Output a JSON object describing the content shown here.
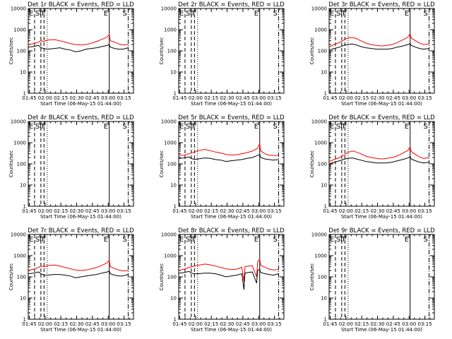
{
  "chart_data": {
    "type": "line",
    "x_tick_labels": [
      "01:45",
      "02:00",
      "02:15",
      "02:30",
      "02:45",
      "03:00",
      "03:15"
    ],
    "x_ticks_minutes_after_0144": [
      1,
      16,
      31,
      46,
      61,
      76,
      91
    ],
    "xlim_minutes_after_0144": [
      0,
      100
    ],
    "xlabel": "Start Time (06-May-15 01:44:00)",
    "ylabel": "Counts/sec",
    "yscale": "log",
    "y_tick_labels": [
      "1",
      "10",
      "100",
      "1000",
      "10000"
    ],
    "ylim": [
      1,
      10000
    ],
    "line_colors": {
      "events": "#000000",
      "lld": "#ff0000"
    },
    "markers": [
      {
        "label": "E",
        "x": 6,
        "style": "dashed"
      },
      {
        "label": "S",
        "x": 12,
        "style": "dashed"
      },
      {
        "label": "T",
        "x": 15,
        "style": "dashed"
      },
      {
        "label": "F",
        "x": 18,
        "style": "dotted"
      },
      {
        "label": "E",
        "x": 77,
        "style": "solid"
      },
      {
        "label": "S",
        "x": 95,
        "style": "dashdot"
      }
    ],
    "panels": [
      {
        "title": "Det 1r BLACK = Events, RED = LLD",
        "marker_labels": [
          "E",
          "S",
          "T",
          "F",
          "E",
          "S"
        ],
        "series": [
          {
            "color": "lld",
            "x": [
              0,
              5,
              10,
              12,
              15,
              18,
              25,
              30,
              35,
              40,
              45,
              50,
              55,
              60,
              65,
              70,
              75,
              77,
              78,
              82,
              86,
              90,
              95
            ],
            "y": [
              200,
              220,
              260,
              300,
              280,
              320,
              340,
              300,
              260,
              220,
              200,
              190,
              200,
              230,
              280,
              350,
              450,
              600,
              300,
              260,
              210,
              190,
              200
            ]
          },
          {
            "color": "events",
            "x": [
              0,
              5,
              10,
              12,
              15,
              18,
              25,
              30,
              35,
              40,
              45,
              50,
              55,
              60,
              65,
              70,
              75,
              77,
              78,
              82,
              86,
              90,
              95
            ],
            "y": [
              150,
              160,
              180,
              140,
              130,
              120,
              130,
              140,
              120,
              110,
              90,
              100,
              120,
              130,
              140,
              160,
              180,
              200,
              150,
              130,
              120,
              120,
              140
            ]
          }
        ]
      },
      {
        "title": "Det 2r BLACK = Events, RED = LLD",
        "marker_labels": [
          "E",
          "S",
          "T",
          "F",
          "E",
          "S"
        ],
        "series": []
      },
      {
        "title": "Det 3r BLACK = Events, RED = LLD",
        "marker_labels": [
          "E",
          "S",
          "T",
          "F",
          "E",
          "S"
        ],
        "series": [
          {
            "color": "lld",
            "x": [
              0,
              5,
              10,
              15,
              18,
              22,
              26,
              30,
              35,
              40,
              45,
              50,
              55,
              60,
              65,
              70,
              75,
              77,
              78,
              82,
              86,
              90,
              95
            ],
            "y": [
              150,
              200,
              250,
              350,
              400,
              430,
              380,
              300,
              230,
              200,
              180,
              170,
              180,
              200,
              250,
              330,
              450,
              650,
              400,
              300,
              230,
              200,
              210
            ]
          },
          {
            "color": "events",
            "x": [
              0,
              5,
              10,
              15,
              18,
              22,
              26,
              30,
              35,
              40,
              45,
              50,
              55,
              60,
              65,
              70,
              75,
              77,
              78,
              82,
              86,
              90,
              95
            ],
            "y": [
              110,
              130,
              150,
              190,
              200,
              210,
              190,
              160,
              140,
              130,
              120,
              120,
              120,
              130,
              150,
              170,
              200,
              220,
              180,
              150,
              130,
              120,
              130
            ]
          }
        ]
      },
      {
        "title": "Det 4r BLACK = Events, RED = LLD",
        "marker_labels": [
          "E",
          "S",
          "T",
          "F",
          "E",
          "S"
        ],
        "series": []
      },
      {
        "title": "Det 5r BLACK = Events, RED = LLD",
        "marker_labels": [
          "E",
          "S",
          "T",
          "F",
          "E",
          "S"
        ],
        "series": [
          {
            "color": "lld",
            "x": [
              0,
              5,
              10,
              12,
              15,
              18,
              25,
              30,
              35,
              40,
              45,
              50,
              55,
              60,
              65,
              70,
              75,
              77,
              78,
              82,
              86,
              90,
              95
            ],
            "y": [
              250,
              260,
              300,
              320,
              350,
              420,
              480,
              420,
              360,
              320,
              280,
              260,
              270,
              300,
              340,
              400,
              550,
              900,
              400,
              300,
              260,
              250,
              250
            ]
          },
          {
            "color": "events",
            "x": [
              0,
              5,
              10,
              12,
              15,
              18,
              25,
              30,
              35,
              40,
              45,
              50,
              55,
              60,
              65,
              70,
              75,
              77,
              78,
              82,
              86,
              90,
              95
            ],
            "y": [
              180,
              190,
              210,
              180,
              160,
              170,
              190,
              180,
              160,
              150,
              130,
              140,
              150,
              160,
              180,
              200,
              250,
              280,
              200,
              170,
              160,
              150,
              160
            ]
          }
        ]
      },
      {
        "title": "Det 6r BLACK = Events, RED = LLD",
        "marker_labels": [
          "E",
          "S",
          "T",
          "F",
          "E",
          "S"
        ],
        "series": [
          {
            "color": "lld",
            "x": [
              0,
              5,
              10,
              15,
              18,
              22,
              26,
              30,
              35,
              40,
              45,
              50,
              55,
              60,
              65,
              70,
              75,
              77,
              78,
              82,
              86,
              90,
              95
            ],
            "y": [
              130,
              160,
              200,
              280,
              350,
              400,
              360,
              300,
              230,
              200,
              180,
              170,
              180,
              200,
              240,
              320,
              430,
              650,
              380,
              280,
              210,
              180,
              200
            ]
          },
          {
            "color": "events",
            "x": [
              0,
              5,
              10,
              15,
              18,
              22,
              26,
              30,
              35,
              40,
              45,
              50,
              55,
              60,
              65,
              70,
              75,
              77,
              78,
              82,
              86,
              90,
              95
            ],
            "y": [
              100,
              120,
              140,
              170,
              180,
              190,
              170,
              150,
              130,
              120,
              110,
              110,
              110,
              120,
              140,
              160,
              190,
              220,
              170,
              140,
              120,
              110,
              120
            ]
          }
        ]
      },
      {
        "title": "Det 7r BLACK = Events, RED = LLD",
        "marker_labels": [
          "E",
          "S",
          "T",
          "F",
          "E",
          "S"
        ],
        "series": [
          {
            "color": "lld",
            "x": [
              0,
              5,
              10,
              12,
              15,
              18,
              25,
              30,
              35,
              40,
              45,
              50,
              55,
              60,
              65,
              70,
              75,
              77,
              78,
              82,
              86,
              90,
              95
            ],
            "y": [
              200,
              230,
              280,
              320,
              300,
              340,
              360,
              320,
              280,
              240,
              210,
              200,
              210,
              240,
              280,
              350,
              460,
              620,
              300,
              250,
              210,
              190,
              200
            ]
          },
          {
            "color": "events",
            "x": [
              0,
              5,
              10,
              12,
              15,
              18,
              25,
              30,
              35,
              40,
              45,
              50,
              55,
              60,
              65,
              70,
              75,
              77,
              78,
              82,
              86,
              90,
              95
            ],
            "y": [
              140,
              150,
              170,
              140,
              120,
              120,
              130,
              130,
              120,
              110,
              90,
              100,
              110,
              120,
              130,
              150,
              170,
              190,
              140,
              120,
              110,
              110,
              130
            ]
          }
        ]
      },
      {
        "title": "Det 8r BLACK = Events, RED = LLD",
        "marker_labels": [
          "E",
          "S",
          "T",
          "F",
          "E",
          "S"
        ],
        "series": [
          {
            "color": "lld",
            "x": [
              0,
              5,
              10,
              12,
              15,
              18,
              25,
              30,
              35,
              40,
              45,
              50,
              55,
              60,
              62,
              63,
              66,
              70,
              74,
              75,
              77,
              78,
              82,
              86,
              90,
              95
            ],
            "y": [
              200,
              230,
              280,
              300,
              320,
              350,
              400,
              370,
              320,
              280,
              240,
              220,
              230,
              280,
              60,
              300,
              320,
              330,
              100,
              500,
              700,
              350,
              280,
              230,
              210,
              220
            ]
          },
          {
            "color": "events",
            "x": [
              0,
              5,
              10,
              12,
              15,
              18,
              25,
              30,
              35,
              40,
              45,
              50,
              55,
              60,
              62,
              63,
              66,
              70,
              74,
              75,
              77,
              78,
              82,
              86,
              90,
              95
            ],
            "y": [
              150,
              160,
              180,
              150,
              140,
              140,
              150,
              150,
              140,
              120,
              100,
              110,
              120,
              140,
              25,
              150,
              160,
              170,
              50,
              200,
              230,
              160,
              140,
              130,
              120,
              140
            ]
          }
        ]
      },
      {
        "title": "Det 9r BLACK = Events, RED = LLD",
        "marker_labels": [
          "E",
          "S",
          "T",
          "F",
          "E",
          "S"
        ],
        "series": []
      }
    ]
  }
}
